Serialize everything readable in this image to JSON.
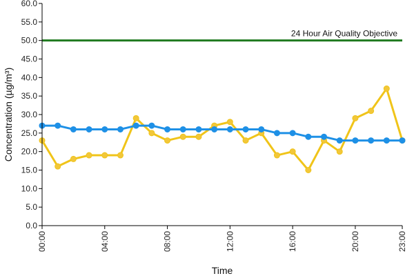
{
  "chart_data": {
    "type": "line",
    "xlabel": "Time",
    "ylabel": "Concentration (µg/m³)",
    "ylim": [
      0,
      60
    ],
    "y_ticks": [
      "0.0",
      "5.0",
      "10.0",
      "15.0",
      "20.0",
      "25.0",
      "30.0",
      "35.0",
      "40.0",
      "45.0",
      "50.0",
      "55.0",
      "60.0"
    ],
    "x_ticks": [
      "00:00",
      "04:00",
      "08:00",
      "12:00",
      "16:00",
      "20:00",
      "23:00"
    ],
    "x_tick_hours": [
      0,
      4,
      8,
      12,
      16,
      20,
      23
    ],
    "grid": false,
    "x": [
      0,
      1,
      2,
      3,
      4,
      5,
      6,
      7,
      8,
      9,
      10,
      11,
      12,
      13,
      14,
      15,
      16,
      17,
      18,
      19,
      20,
      21,
      22,
      23
    ],
    "series": [
      {
        "color": "#f0c419",
        "marker_fill": "#f2c73a",
        "values": [
          23,
          16,
          18,
          19,
          19,
          19,
          29,
          25,
          23,
          24,
          24,
          27,
          28,
          23,
          25,
          19,
          20,
          15,
          23,
          20,
          29,
          31,
          37,
          23
        ]
      },
      {
        "color": "#1e90e6",
        "marker_fill": "#1e90e6",
        "values": [
          27,
          27,
          26,
          26,
          26,
          26,
          27,
          27,
          26,
          26,
          26,
          26,
          26,
          26,
          26,
          25,
          25,
          24,
          24,
          23,
          23,
          23,
          23,
          23
        ]
      }
    ],
    "reference_line": {
      "label": "24 Hour Air Quality Objective",
      "value": 50,
      "color": "#1f7a1f"
    }
  }
}
